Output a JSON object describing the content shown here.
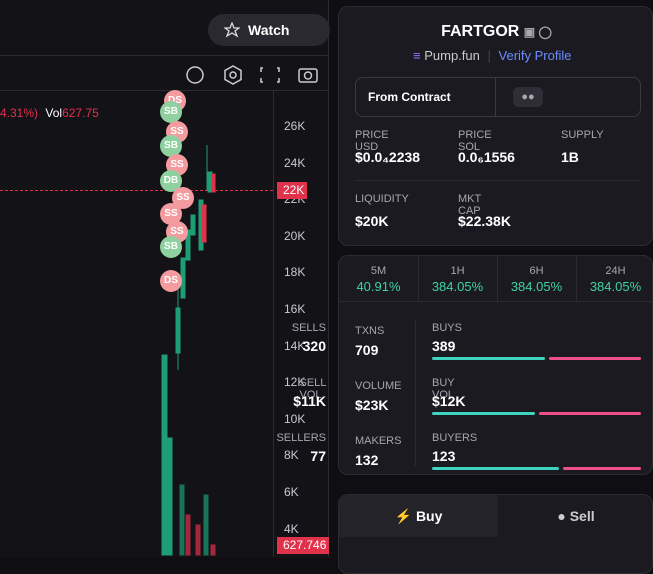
{
  "header": {
    "watch": "Watch"
  },
  "chart_panel": {
    "legend_change": "4.31%)",
    "vol_label": "Vol",
    "vol_value": "627.75",
    "price_axis": [
      "26K",
      "24K",
      "22K",
      "20K",
      "18K",
      "16K",
      "14K",
      "12K",
      "10K",
      "8K",
      "6K",
      "4K"
    ],
    "current_price": "22K",
    "current_volume": "627.746",
    "markers": [
      "DS",
      "SB",
      "SS",
      "SB",
      "SS",
      "DB",
      "SS",
      "SS",
      "SS",
      "SB",
      "DS"
    ]
  },
  "token": {
    "name": "FARTGOR",
    "platform": "Pump.fun",
    "verify": "Verify Profile",
    "from_contract": "From Contract",
    "stats": [
      {
        "label": "PRICE USD",
        "value": "$0.0₄2238"
      },
      {
        "label": "PRICE SOL",
        "value": "0.0₆1556"
      },
      {
        "label": "SUPPLY",
        "value": "1B"
      },
      {
        "label": "LIQUIDITY",
        "value": "$20K"
      },
      {
        "label": "MKT CAP",
        "value": "$22.38K"
      }
    ]
  },
  "timeframes": [
    {
      "label": "5M",
      "change": "40.91%"
    },
    {
      "label": "1H",
      "change": "384.05%"
    },
    {
      "label": "6H",
      "change": "384.05%"
    },
    {
      "label": "24H",
      "change": "384.05%"
    }
  ],
  "activity": [
    {
      "label": "TXNS",
      "value": 709,
      "left_label": "BUYS",
      "left": 389,
      "right_label": "SELLS",
      "right": 320
    },
    {
      "label": "VOLUME",
      "value": "$23K",
      "left_label": "BUY VOL",
      "left": "$12K",
      "right_label": "SELL VOL",
      "right": "$11K"
    },
    {
      "label": "MAKERS",
      "value": 132,
      "left_label": "BUYERS",
      "left": 123,
      "right_label": "SELLERS",
      "right": 77
    }
  ],
  "trade_tabs": [
    "Buy",
    "Sell"
  ]
}
